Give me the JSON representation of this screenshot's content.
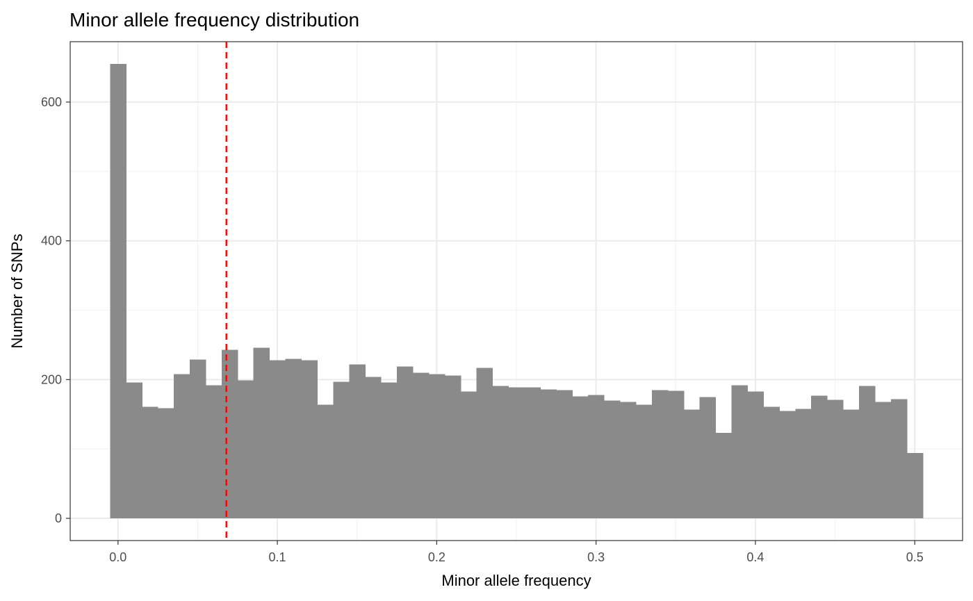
{
  "chart_data": {
    "type": "bar",
    "subtype": "histogram",
    "title": "Minor allele frequency distribution",
    "xlabel": "Minor allele frequency",
    "ylabel": "Number of SNPs",
    "xlim": [
      -0.03,
      0.53
    ],
    "ylim": [
      -32,
      687
    ],
    "x_ticks": [
      "0.0",
      "0.1",
      "0.2",
      "0.3",
      "0.4",
      "0.5"
    ],
    "x_tick_values": [
      0.0,
      0.1,
      0.2,
      0.3,
      0.4,
      0.5
    ],
    "y_ticks": [
      "0",
      "200",
      "400",
      "600"
    ],
    "y_tick_values": [
      0,
      200,
      400,
      600
    ],
    "grid": true,
    "bin_width": 0.01,
    "bin_centers": [
      0.0,
      0.01,
      0.02,
      0.03,
      0.04,
      0.05,
      0.06,
      0.07,
      0.08,
      0.09,
      0.1,
      0.11,
      0.12,
      0.13,
      0.14,
      0.15,
      0.16,
      0.17,
      0.18,
      0.19,
      0.2,
      0.21,
      0.22,
      0.23,
      0.24,
      0.25,
      0.26,
      0.27,
      0.28,
      0.29,
      0.3,
      0.31,
      0.32,
      0.33,
      0.34,
      0.35,
      0.36,
      0.37,
      0.38,
      0.39,
      0.4,
      0.41,
      0.42,
      0.43,
      0.44,
      0.45,
      0.46,
      0.47,
      0.48,
      0.49,
      0.5
    ],
    "values": [
      655,
      196,
      161,
      159,
      208,
      229,
      192,
      243,
      199,
      246,
      228,
      230,
      228,
      164,
      197,
      222,
      204,
      196,
      219,
      210,
      208,
      206,
      183,
      217,
      191,
      189,
      189,
      186,
      185,
      176,
      178,
      170,
      168,
      164,
      185,
      184,
      157,
      175,
      123,
      192,
      183,
      161,
      155,
      158,
      177,
      171,
      157,
      191,
      168,
      172,
      94
    ],
    "bar_color": "#8a8a8a",
    "reference_line": {
      "x": 0.068,
      "color": "#ff0000",
      "style": "dashed"
    }
  }
}
